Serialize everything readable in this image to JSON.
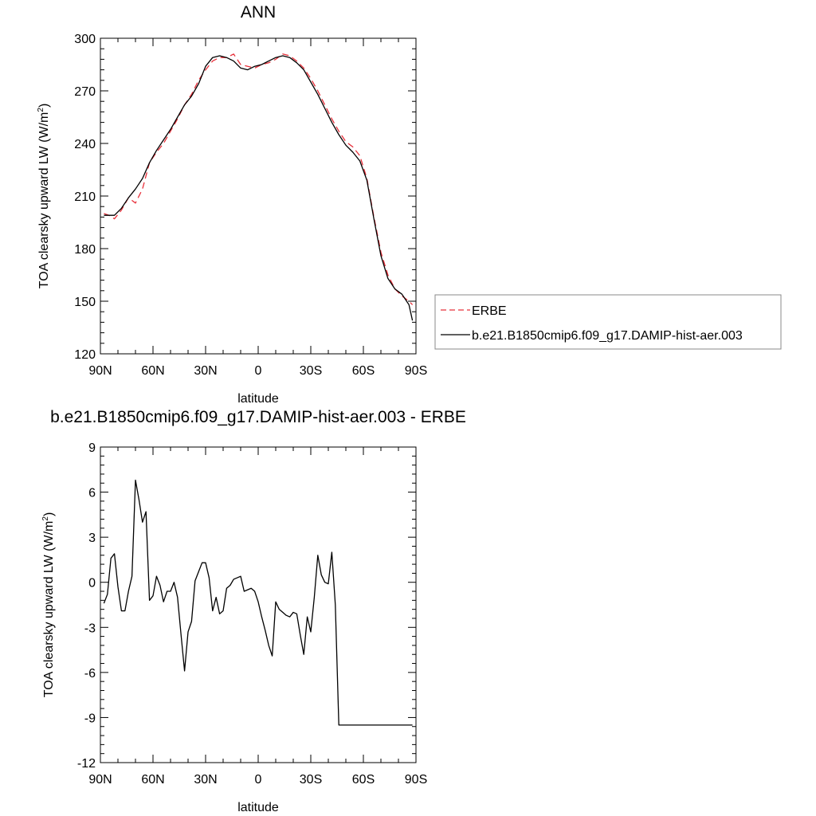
{
  "chart_data": [
    {
      "type": "line",
      "title": "ANN",
      "xlabel": "latitude",
      "ylabel": "TOA clearsky upward LW (W/m",
      "ylabel_sup": "2",
      "ylabel_close": ")",
      "xlim": [
        90,
        -90
      ],
      "ylim": [
        120,
        300
      ],
      "xticks": [
        {
          "value": 90,
          "label": "90N"
        },
        {
          "value": 60,
          "label": "60N"
        },
        {
          "value": 30,
          "label": "30N"
        },
        {
          "value": 0,
          "label": "0"
        },
        {
          "value": -30,
          "label": "30S"
        },
        {
          "value": -60,
          "label": "60S"
        },
        {
          "value": -90,
          "label": "90S"
        }
      ],
      "yticks": [
        120,
        150,
        180,
        210,
        240,
        270,
        300
      ],
      "legend": {
        "placement": "right"
      },
      "series": [
        {
          "name": "ERBE",
          "color": "#e8303a",
          "dash": true,
          "x": [
            88,
            85,
            82,
            78,
            74,
            70,
            66,
            62,
            58,
            54,
            50,
            46,
            42,
            38,
            34,
            30,
            26,
            22,
            18,
            14,
            10,
            6,
            2,
            -2,
            -6,
            -10,
            -14,
            -18,
            -22,
            -26,
            -30,
            -34,
            -38,
            -42,
            -46,
            -50,
            -54,
            -58,
            -62,
            -66,
            -70,
            -74,
            -78,
            -82,
            -86,
            -88
          ],
          "y": [
            200,
            199,
            197,
            202,
            209,
            206,
            214,
            229,
            235,
            240,
            247,
            254,
            262,
            268,
            276,
            282,
            287,
            289,
            289,
            291,
            285,
            284,
            283,
            285,
            286,
            288,
            291,
            290,
            287,
            283,
            277,
            270,
            262,
            254,
            247,
            241,
            238,
            233,
            220,
            198,
            178,
            165,
            157,
            153,
            150,
            148
          ]
        },
        {
          "name": "b.e21.B1850cmip6.f09_g17.DAMIP-hist-aer.003",
          "color": "#000000",
          "dash": false,
          "x": [
            88,
            85,
            82,
            78,
            74,
            70,
            66,
            62,
            58,
            54,
            50,
            46,
            42,
            38,
            34,
            30,
            26,
            22,
            18,
            14,
            10,
            6,
            2,
            -2,
            -6,
            -10,
            -14,
            -18,
            -22,
            -26,
            -30,
            -34,
            -38,
            -42,
            -46,
            -50,
            -54,
            -58,
            -62,
            -66,
            -70,
            -74,
            -78,
            -82,
            -86,
            -88
          ],
          "y": [
            199,
            199,
            199,
            203,
            209,
            214,
            220,
            229,
            236,
            242,
            248,
            255,
            262,
            267,
            274,
            284,
            289,
            290,
            289,
            287,
            283,
            282,
            284,
            285,
            287,
            289,
            290,
            289,
            286,
            282,
            275,
            268,
            260,
            252,
            245,
            239,
            235,
            230,
            219,
            197,
            176,
            163,
            157,
            154,
            148,
            139
          ]
        }
      ]
    },
    {
      "type": "line",
      "title": "b.e21.B1850cmip6.f09_g17.DAMIP-hist-aer.003 - ERBE",
      "xlabel": "latitude",
      "ylabel": "TOA clearsky upward LW (W/m",
      "ylabel_sup": "2",
      "ylabel_close": ")",
      "xlim": [
        90,
        -90
      ],
      "ylim": [
        -12,
        9
      ],
      "xticks": [
        {
          "value": 90,
          "label": "90N"
        },
        {
          "value": 60,
          "label": "60N"
        },
        {
          "value": 30,
          "label": "30N"
        },
        {
          "value": 0,
          "label": "0"
        },
        {
          "value": -30,
          "label": "30S"
        },
        {
          "value": -60,
          "label": "60S"
        },
        {
          "value": -90,
          "label": "90S"
        }
      ],
      "yticks": [
        -12,
        -9,
        -6,
        -3,
        0,
        3,
        6,
        9
      ],
      "series": [
        {
          "color": "#000000",
          "dash": false,
          "x": [
            88,
            86,
            84,
            82,
            80,
            78,
            76,
            74,
            72,
            70,
            68,
            66,
            64,
            62,
            60,
            58,
            56,
            54,
            52,
            50,
            48,
            46,
            44,
            42,
            40,
            38,
            36,
            34,
            32,
            30,
            28,
            26,
            24,
            22,
            20,
            18,
            16,
            14,
            12,
            10,
            8,
            6,
            4,
            2,
            0,
            -2,
            -4,
            -6,
            -8,
            -10,
            -12,
            -14,
            -16,
            -18,
            -20,
            -22,
            -24,
            -26,
            -28,
            -30,
            -32,
            -34,
            -36,
            -38,
            -40,
            -42,
            -44,
            -46,
            -48,
            -50,
            -52,
            -54,
            -56,
            -58,
            -60,
            -62,
            -64,
            -66,
            -68,
            -70,
            -72,
            -74,
            -76,
            -78,
            -80,
            -82,
            -84,
            -86,
            -88
          ],
          "y": [
            -1.4,
            -0.8,
            1.6,
            1.9,
            -0.3,
            -1.9,
            -1.9,
            -0.6,
            0.4,
            6.8,
            5.5,
            4.0,
            4.7,
            -1.2,
            -0.9,
            0.4,
            -0.2,
            -1.3,
            -0.6,
            -0.6,
            0.0,
            -1.0,
            -3.5,
            -5.9,
            -3.3,
            -2.6,
            0.1,
            0.7,
            1.3,
            1.3,
            0.3,
            -1.9,
            -1.0,
            -2.1,
            -1.9,
            -0.4,
            -0.2,
            0.2,
            0.3,
            0.4,
            -0.6,
            -0.5,
            -0.4,
            -0.6,
            -1.3,
            -2.3,
            -3.2,
            -4.2,
            -4.9,
            -1.3,
            -1.8,
            -2.0,
            -2.2,
            -2.3,
            -2.0,
            -2.1,
            -3.5,
            -4.8,
            -2.3,
            -3.3,
            -1.0,
            1.8,
            0.5,
            0.0,
            -0.1,
            2.0,
            -1.5,
            -9.5,
            -9.5,
            -9.5,
            -9.5,
            -9.5,
            -9.5,
            -9.5,
            -9.5,
            -9.5,
            -9.5,
            -9.5,
            -9.5,
            -9.5,
            -9.5,
            -9.5,
            -9.5,
            -9.5,
            -9.5,
            -9.5,
            -9.5,
            -9.5,
            -9.5
          ]
        }
      ]
    }
  ]
}
